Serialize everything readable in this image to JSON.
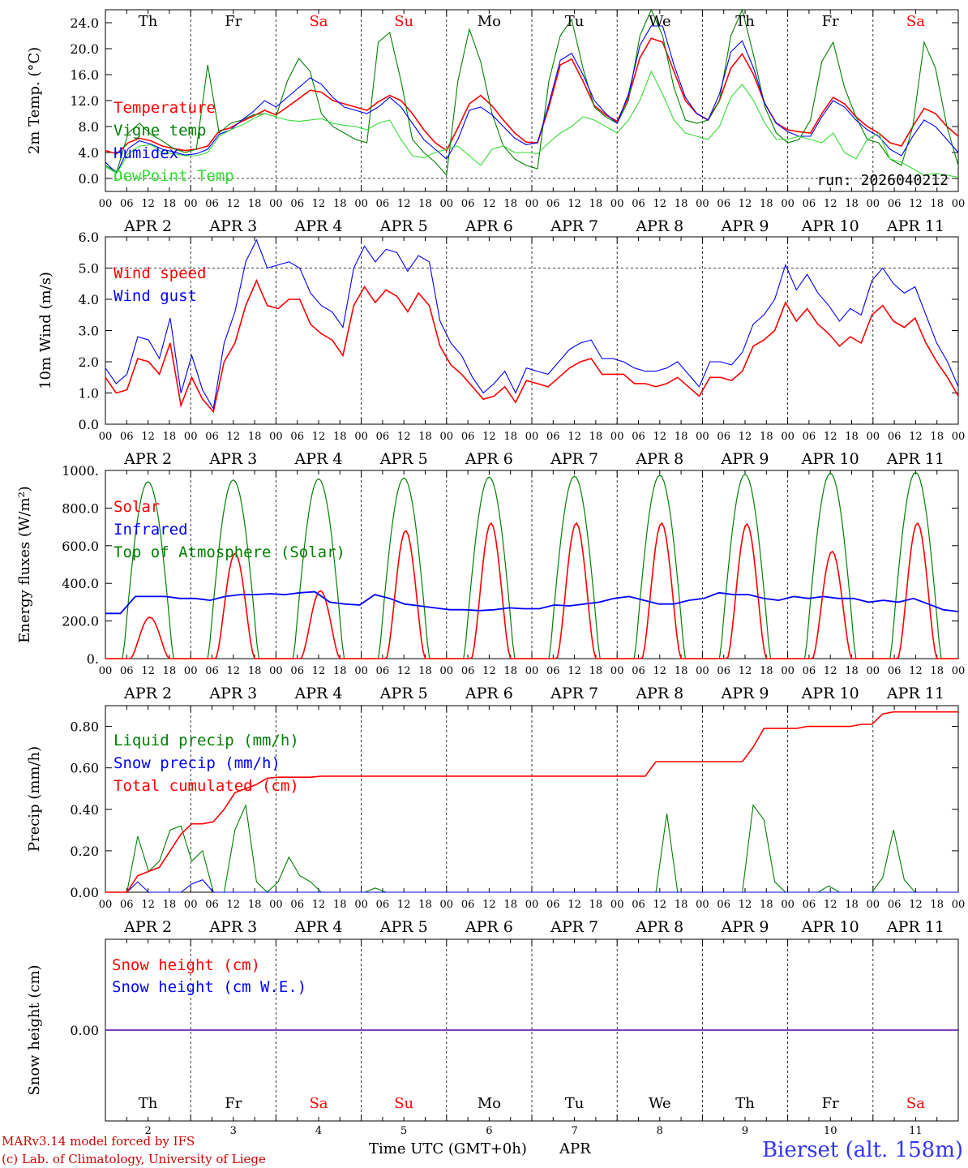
{
  "chart_data": [
    {
      "type": "line",
      "ylabel": "2m Temp. (°C)",
      "ylim": [
        -2,
        26
      ],
      "yticks": [
        "0.0",
        "4.0",
        "8.0",
        "12.0",
        "16.0",
        "20.0",
        "24.0"
      ],
      "ytick_values": [
        0,
        4,
        8,
        12,
        16,
        20,
        24
      ],
      "legend": [
        "Temperature",
        "Vigne temp",
        "Humidex",
        "DewPoint Temp"
      ],
      "run_label": "run: 2026040212",
      "series": [
        {
          "name": "Temperature",
          "color": "#ff0000",
          "values": [
            4.3,
            3.8,
            5.5,
            6.2,
            5.8,
            5.0,
            4.6,
            4.3,
            4.5,
            5.0,
            7.3,
            7.8,
            8.8,
            9.6,
            10.5,
            9.8,
            11.0,
            12.3,
            13.6,
            13.3,
            12.0,
            11.5,
            11.0,
            10.5,
            11.8,
            12.8,
            12.0,
            10.0,
            7.5,
            5.5,
            4.3,
            7.8,
            11.5,
            12.8,
            11.2,
            9.0,
            7.0,
            5.6,
            5.5,
            11.0,
            17.5,
            18.4,
            15.0,
            11.2,
            9.8,
            8.8,
            12.5,
            18.6,
            21.6,
            21.0,
            16.5,
            12.0,
            10.0,
            9.0,
            12.0,
            17.0,
            19.2,
            16.0,
            11.5,
            8.5,
            7.5,
            7.2,
            7.0,
            10.0,
            12.5,
            11.5,
            9.5,
            8.0,
            7.0,
            5.5,
            5.0,
            8.0,
            10.8,
            10.0,
            8.0,
            6.5
          ]
        },
        {
          "name": "Vigne temp",
          "color": "#008000",
          "values": [
            2.0,
            1.0,
            7.0,
            8.5,
            6.8,
            5.8,
            4.6,
            4.0,
            4.5,
            17.5,
            7.0,
            8.5,
            9.0,
            9.8,
            10.0,
            9.5,
            15.0,
            18.5,
            16.5,
            10.0,
            8.0,
            7.0,
            6.0,
            5.5,
            21.0,
            22.5,
            15.0,
            6.0,
            4.0,
            2.5,
            0.5,
            15.0,
            23.0,
            18.0,
            10.0,
            5.0,
            3.0,
            2.0,
            1.5,
            15.0,
            22.0,
            24.5,
            17.0,
            11.0,
            9.5,
            8.5,
            12.0,
            22.0,
            26.0,
            22.0,
            14.0,
            9.0,
            8.5,
            9.0,
            12.0,
            22.0,
            26.0,
            19.0,
            11.0,
            7.0,
            5.5,
            6.0,
            9.0,
            18.0,
            21.0,
            14.0,
            9.5,
            6.0,
            5.5,
            3.0,
            2.0,
            8.0,
            21.0,
            17.0,
            8.0,
            2.0
          ]
        },
        {
          "name": "Humidex",
          "color": "#0000ff",
          "values": [
            2.5,
            0.8,
            4.6,
            5.8,
            5.3,
            4.5,
            4.1,
            3.6,
            3.8,
            4.5,
            6.8,
            7.5,
            9.0,
            10.3,
            12.0,
            11.0,
            12.5,
            14.0,
            15.5,
            14.5,
            12.5,
            11.0,
            10.5,
            10.0,
            11.0,
            12.5,
            11.0,
            8.5,
            6.0,
            4.5,
            3.0,
            6.0,
            10.5,
            11.0,
            9.8,
            8.0,
            6.2,
            5.2,
            5.5,
            11.5,
            18.2,
            19.3,
            16.0,
            12.0,
            10.0,
            8.5,
            13.0,
            20.5,
            23.5,
            23.5,
            17.5,
            12.5,
            10.0,
            9.0,
            13.0,
            19.5,
            21.2,
            17.0,
            11.5,
            8.5,
            7.2,
            6.5,
            6.5,
            9.5,
            12.0,
            11.0,
            9.0,
            7.5,
            6.5,
            4.5,
            3.5,
            6.5,
            9.0,
            8.0,
            6.0,
            4.0
          ]
        },
        {
          "name": "DewPoint Temp",
          "color": "#33dd33",
          "values": [
            1.8,
            0.8,
            3.8,
            5.0,
            5.2,
            4.0,
            3.8,
            3.5,
            3.5,
            4.0,
            6.5,
            7.5,
            8.2,
            9.2,
            10.0,
            9.5,
            9.0,
            8.8,
            9.0,
            9.2,
            8.5,
            8.2,
            8.0,
            7.5,
            8.5,
            9.0,
            6.0,
            3.5,
            3.2,
            4.0,
            4.5,
            5.0,
            3.5,
            2.0,
            4.5,
            5.0,
            4.0,
            4.0,
            3.8,
            5.5,
            7.0,
            8.0,
            9.5,
            9.0,
            8.0,
            7.0,
            9.0,
            12.0,
            16.5,
            13.0,
            9.0,
            7.0,
            6.5,
            6.0,
            8.0,
            12.5,
            14.5,
            12.0,
            8.5,
            6.0,
            6.0,
            6.5,
            6.0,
            5.5,
            7.0,
            4.0,
            3.0,
            6.0,
            7.0,
            3.0,
            2.5,
            1.5,
            0.5,
            0.8,
            0.5,
            0.2
          ]
        }
      ]
    },
    {
      "type": "line",
      "ylabel": "10m Wind (m/s)",
      "ylim": [
        0,
        6
      ],
      "yticks": [
        "0.0",
        "1.0",
        "2.0",
        "3.0",
        "4.0",
        "5.0",
        "6.0"
      ],
      "ytick_values": [
        0,
        1,
        2,
        3,
        4,
        5,
        6
      ],
      "legend": [
        "Wind speed",
        "Wind gust"
      ],
      "series": [
        {
          "name": "Wind speed",
          "color": "#ff0000",
          "values": [
            1.5,
            1.0,
            1.1,
            2.1,
            2.0,
            1.6,
            2.6,
            0.6,
            1.5,
            0.8,
            0.4,
            2.0,
            2.6,
            3.8,
            4.6,
            3.8,
            3.7,
            4.0,
            4.0,
            3.2,
            2.9,
            2.7,
            2.2,
            3.8,
            4.4,
            3.9,
            4.3,
            4.1,
            3.6,
            4.2,
            3.8,
            2.5,
            1.9,
            1.6,
            1.2,
            0.8,
            0.9,
            1.2,
            0.7,
            1.4,
            1.3,
            1.2,
            1.5,
            1.8,
            2.0,
            2.1,
            1.6,
            1.6,
            1.6,
            1.3,
            1.3,
            1.2,
            1.3,
            1.5,
            1.2,
            0.9,
            1.5,
            1.5,
            1.4,
            1.7,
            2.5,
            2.7,
            3.0,
            3.9,
            3.3,
            3.7,
            3.2,
            2.9,
            2.5,
            2.8,
            2.6,
            3.5,
            3.8,
            3.3,
            3.1,
            3.4,
            2.6,
            2.0,
            1.5,
            0.9
          ]
        },
        {
          "name": "Wind gust",
          "color": "#0000ff",
          "values": [
            1.8,
            1.3,
            1.6,
            2.8,
            2.7,
            2.1,
            3.4,
            1.0,
            2.2,
            1.1,
            0.5,
            2.6,
            3.6,
            5.2,
            5.9,
            5.0,
            5.1,
            5.2,
            5.0,
            4.2,
            3.8,
            3.6,
            3.1,
            5.0,
            5.7,
            5.2,
            5.6,
            5.5,
            4.9,
            5.4,
            5.2,
            3.3,
            2.6,
            2.2,
            1.5,
            1.0,
            1.3,
            1.7,
            1.0,
            1.8,
            1.7,
            1.6,
            2.0,
            2.4,
            2.6,
            2.7,
            2.1,
            2.1,
            2.0,
            1.8,
            1.7,
            1.7,
            1.8,
            2.0,
            1.6,
            1.2,
            2.0,
            2.0,
            1.9,
            2.3,
            3.2,
            3.5,
            4.0,
            5.1,
            4.3,
            4.8,
            4.2,
            3.8,
            3.3,
            3.7,
            3.5,
            4.6,
            5.0,
            4.5,
            4.2,
            4.4,
            3.5,
            2.6,
            2.0,
            1.2
          ]
        }
      ]
    },
    {
      "type": "line",
      "ylabel": "Energy fluxes (W/m²)",
      "ylim": [
        0,
        1000
      ],
      "yticks": [
        "0.",
        "200.0",
        "400.0",
        "600.0",
        "800.0",
        "1000."
      ],
      "ytick_values": [
        0,
        200,
        400,
        600,
        800,
        1000
      ],
      "legend": [
        "Solar",
        "Infrared",
        "Top of Atmosphere (Solar)"
      ],
      "toa_peaks": [
        940,
        950,
        955,
        960,
        965,
        970,
        975,
        980,
        985,
        990
      ],
      "solar_peaks": [
        220,
        560,
        360,
        680,
        720,
        720,
        720,
        715,
        570,
        720
      ],
      "series": [
        {
          "name": "Infrared",
          "color": "#0000ff",
          "values": [
            240,
            240,
            330,
            330,
            330,
            320,
            320,
            310,
            330,
            340,
            340,
            345,
            340,
            350,
            355,
            300,
            290,
            285,
            340,
            320,
            290,
            280,
            270,
            260,
            260,
            255,
            260,
            270,
            265,
            265,
            285,
            280,
            290,
            300,
            320,
            330,
            310,
            290,
            290,
            310,
            320,
            350,
            340,
            340,
            320,
            310,
            330,
            320,
            330,
            320,
            320,
            300,
            310,
            300,
            320,
            290,
            260,
            250
          ]
        }
      ]
    },
    {
      "type": "line",
      "ylabel": "Precip (mm/h)",
      "ylim": [
        0,
        0.9
      ],
      "yticks": [
        "0.00",
        "0.20",
        "0.40",
        "0.60",
        "0.80"
      ],
      "ytick_values": [
        0,
        0.2,
        0.4,
        0.6,
        0.8
      ],
      "legend": [
        "Liquid precip (mm/h)",
        "Snow precip (mm/h)",
        "Total cumulated (cm)"
      ],
      "series": [
        {
          "name": "Liquid precip (mm/h)",
          "color": "#008000",
          "values": [
            0,
            0,
            0,
            0.27,
            0.1,
            0.15,
            0.3,
            0.32,
            0.15,
            0.2,
            0,
            0,
            0.3,
            0.42,
            0.05,
            0,
            0.05,
            0.17,
            0.08,
            0.05,
            0,
            0,
            0,
            0,
            0,
            0.02,
            0,
            0,
            0,
            0,
            0,
            0,
            0,
            0,
            0,
            0,
            0,
            0,
            0,
            0,
            0,
            0,
            0,
            0,
            0,
            0,
            0,
            0,
            0,
            0,
            0,
            0,
            0.38,
            0,
            0,
            0,
            0,
            0,
            0,
            0,
            0.42,
            0.35,
            0.05,
            0,
            0,
            0,
            0,
            0.03,
            0,
            0,
            0,
            0,
            0.07,
            0.3,
            0.06,
            0,
            0,
            0,
            0,
            0
          ]
        },
        {
          "name": "Snow precip (mm/h)",
          "color": "#0000ff",
          "values": [
            0,
            0,
            0,
            0.05,
            0,
            0,
            0,
            0,
            0.04,
            0.06,
            0,
            0,
            0,
            0,
            0,
            0,
            0,
            0,
            0,
            0,
            0,
            0,
            0,
            0,
            0,
            0,
            0,
            0,
            0,
            0,
            0,
            0,
            0,
            0,
            0,
            0,
            0,
            0,
            0,
            0,
            0,
            0,
            0,
            0,
            0,
            0,
            0,
            0,
            0,
            0,
            0,
            0,
            0,
            0,
            0,
            0,
            0,
            0,
            0,
            0,
            0,
            0,
            0,
            0,
            0,
            0,
            0,
            0,
            0,
            0,
            0,
            0,
            0,
            0,
            0,
            0,
            0,
            0,
            0,
            0
          ]
        },
        {
          "name": "Total cumulated (cm)",
          "color": "#ff0000",
          "values": [
            0,
            0,
            0,
            0.08,
            0.1,
            0.12,
            0.2,
            0.28,
            0.33,
            0.33,
            0.34,
            0.4,
            0.48,
            0.5,
            0.52,
            0.55,
            0.555,
            0.555,
            0.555,
            0.555,
            0.56,
            0.56,
            0.56,
            0.56,
            0.56,
            0.56,
            0.56,
            0.56,
            0.56,
            0.56,
            0.56,
            0.56,
            0.56,
            0.56,
            0.56,
            0.56,
            0.56,
            0.56,
            0.56,
            0.56,
            0.56,
            0.56,
            0.56,
            0.56,
            0.56,
            0.56,
            0.56,
            0.56,
            0.56,
            0.56,
            0.56,
            0.63,
            0.63,
            0.63,
            0.63,
            0.63,
            0.63,
            0.63,
            0.63,
            0.63,
            0.7,
            0.79,
            0.79,
            0.79,
            0.79,
            0.8,
            0.8,
            0.8,
            0.8,
            0.8,
            0.81,
            0.81,
            0.86,
            0.87,
            0.87,
            0.87,
            0.87,
            0.87,
            0.87,
            0.87
          ]
        }
      ]
    },
    {
      "type": "line",
      "ylabel": "Snow height (cm)",
      "ylim": [
        -1,
        1
      ],
      "yticks": [
        "0.00"
      ],
      "ytick_values": [
        0
      ],
      "legend": [
        "Snow height (cm)",
        "Snow height (cm W.E.)"
      ],
      "series": [
        {
          "name": "Snow height (cm)",
          "color": "#ff0000",
          "values": [
            0,
            0
          ]
        },
        {
          "name": "Snow height (cm W.E.)",
          "color": "#0000ff",
          "values": [
            0,
            0
          ]
        }
      ]
    }
  ],
  "axis": {
    "hour_labels": [
      "00",
      "06",
      "12",
      "18"
    ],
    "last_hour_label": "00",
    "days": [
      {
        "weekday": "Th",
        "date": "APR  2",
        "num": "2",
        "weekend": false
      },
      {
        "weekday": "Fr",
        "date": "APR  3",
        "num": "3",
        "weekend": false
      },
      {
        "weekday": "Sa",
        "date": "APR  4",
        "num": "4",
        "weekend": true
      },
      {
        "weekday": "Su",
        "date": "APR  5",
        "num": "5",
        "weekend": true
      },
      {
        "weekday": "Mo",
        "date": "APR  6",
        "num": "6",
        "weekend": false
      },
      {
        "weekday": "Tu",
        "date": "APR  7",
        "num": "7",
        "weekend": false
      },
      {
        "weekday": "We",
        "date": "APR  8",
        "num": "8",
        "weekend": false
      },
      {
        "weekday": "Th",
        "date": "APR  9",
        "num": "9",
        "weekend": false
      },
      {
        "weekday": "Fr",
        "date": "APR 10",
        "num": "10",
        "weekend": false
      },
      {
        "weekday": "Sa",
        "date": "APR 11",
        "num": "11",
        "weekend": true
      }
    ]
  },
  "footer": {
    "model": "MARv3.14 model forced by IFS",
    "copyright": "(c) Lab. of Climatology, University of Liege",
    "xlabel": "Time UTC (GMT+0h)",
    "month": "APR",
    "station": "Bierset (alt. 158m)"
  },
  "colors": {
    "weekend": "#ff0000",
    "weekday": "#000000",
    "station": "#3333ff",
    "footer": "#cc0000"
  }
}
